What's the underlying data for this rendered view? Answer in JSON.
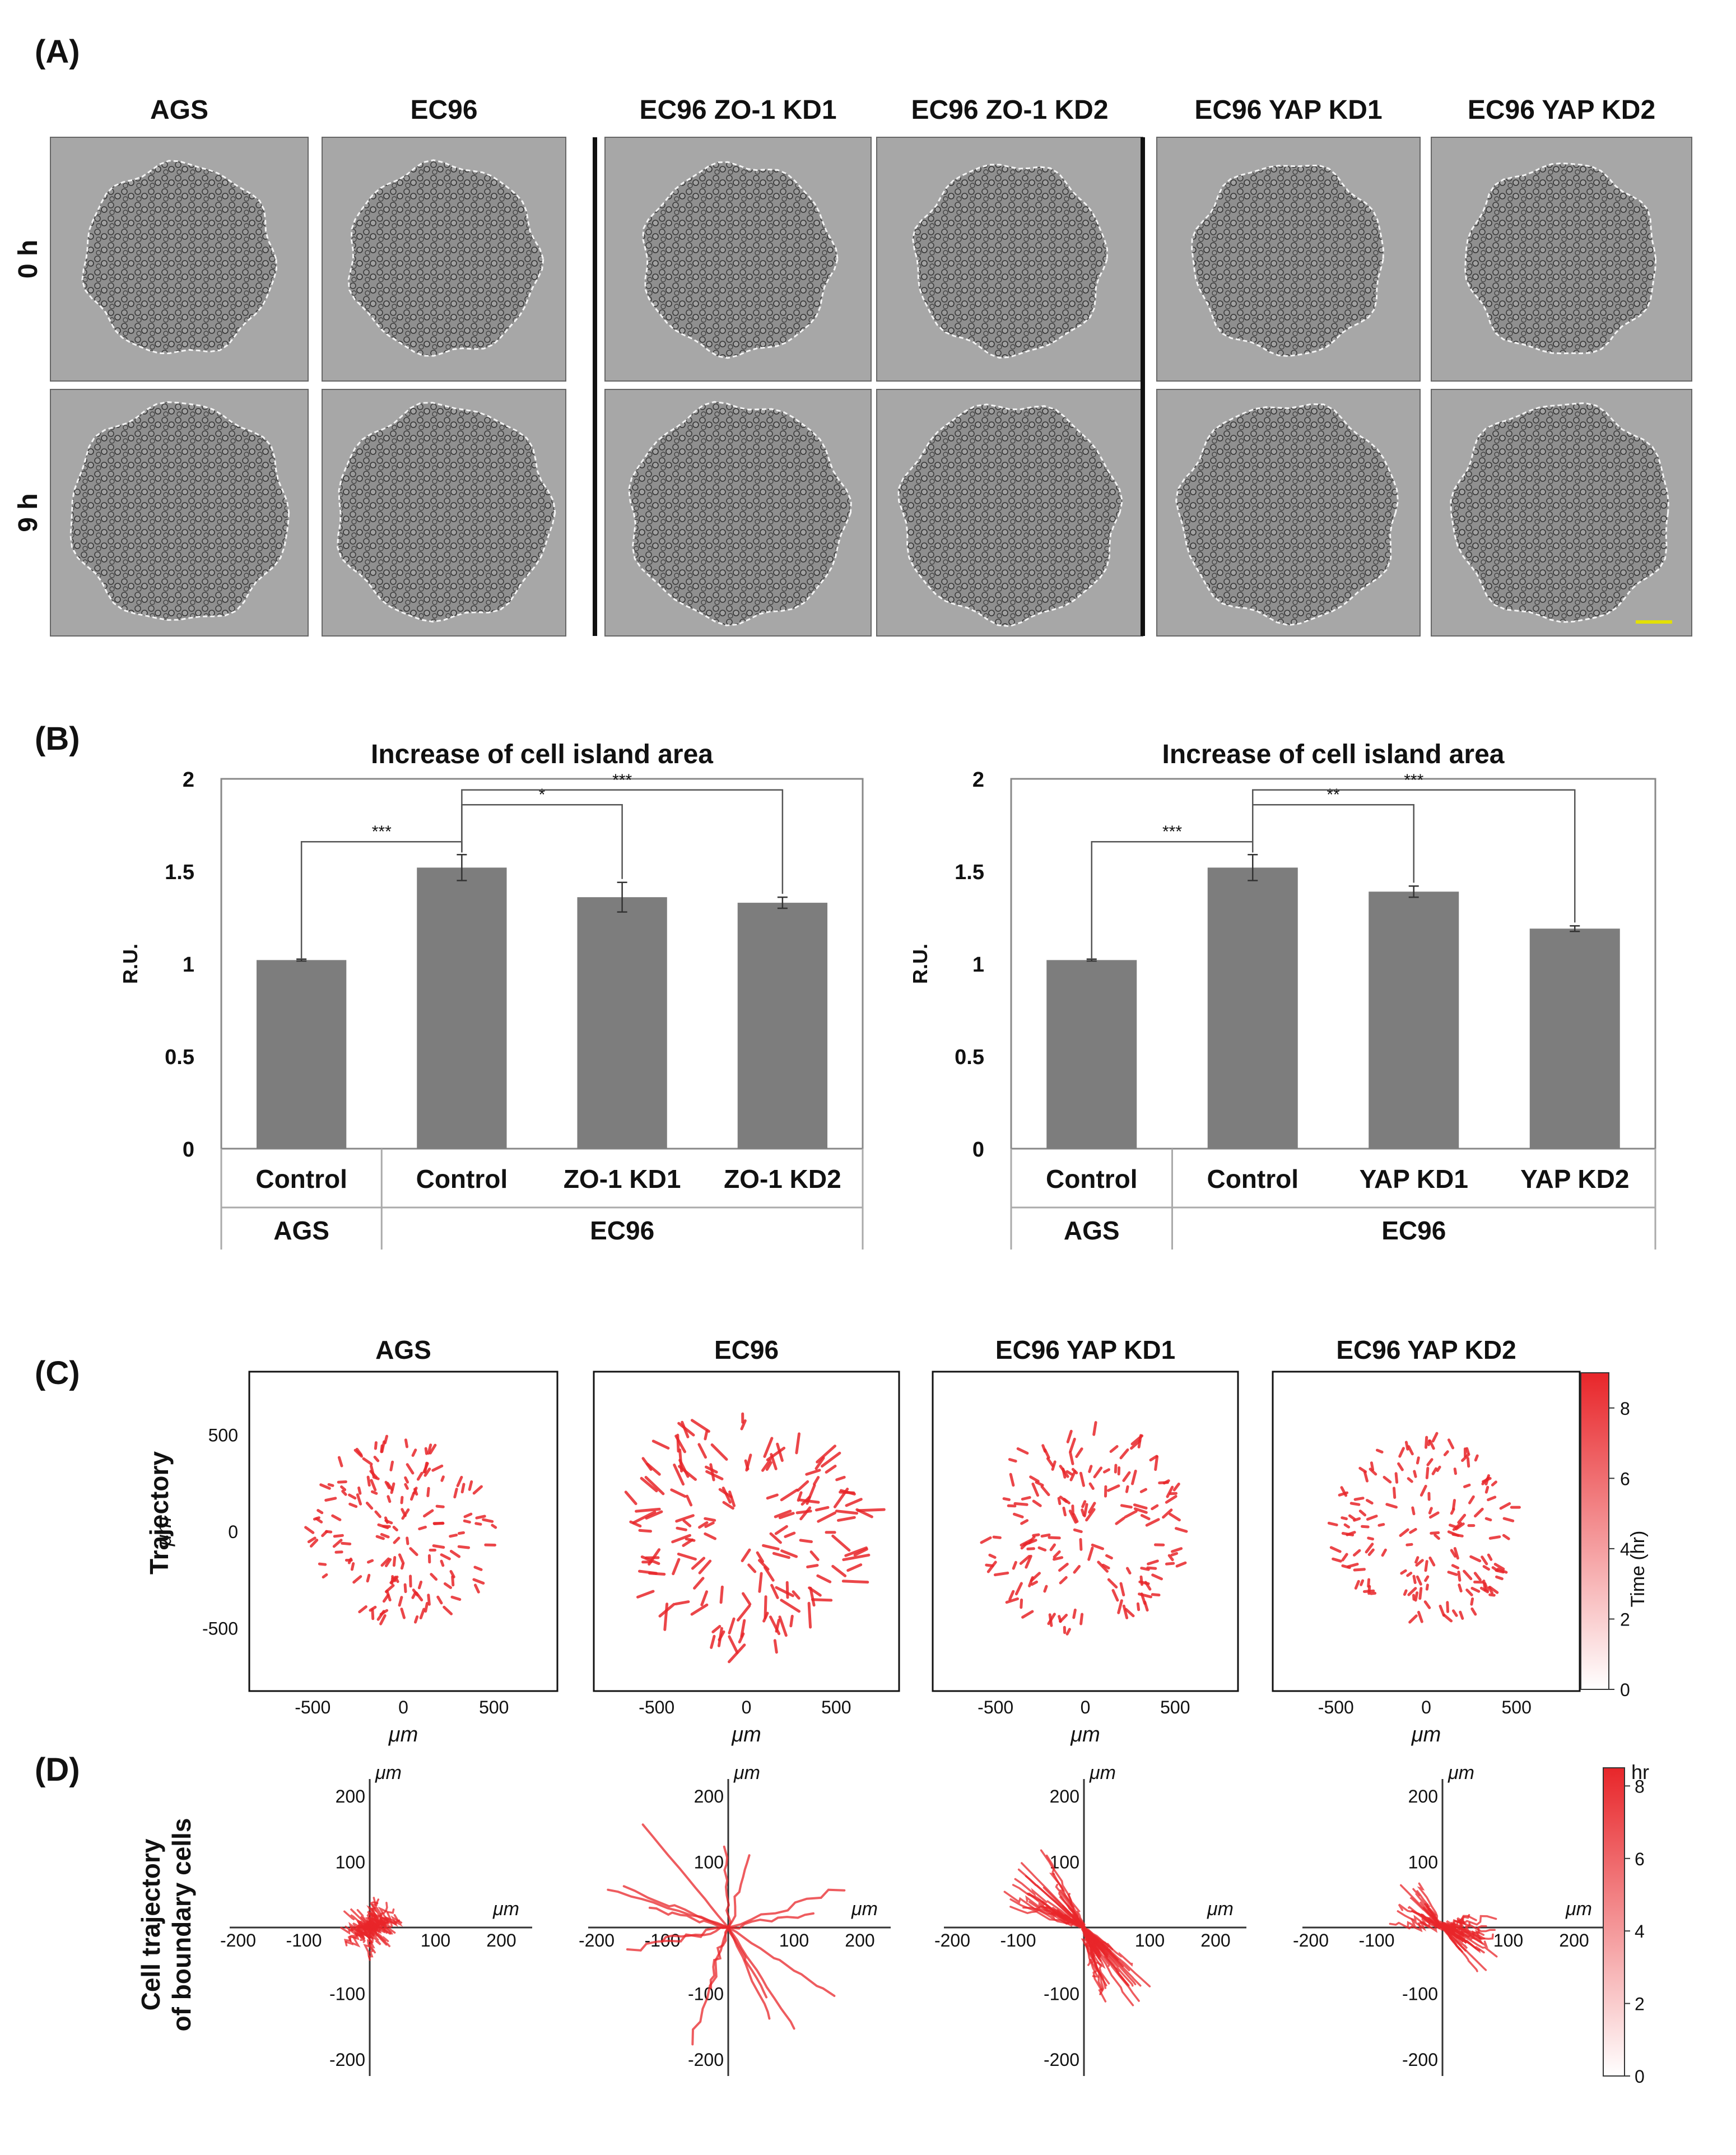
{
  "panel_a": {
    "label": "(A)",
    "columns": [
      "AGS",
      "EC96",
      "EC96 ZO-1 KD1",
      "EC96 ZO-1 KD2",
      "EC96 YAP KD1",
      "EC96 YAP KD2"
    ],
    "rows": [
      "0 h",
      "9 h"
    ]
  },
  "panel_b": {
    "label": "(B)",
    "charts": [
      {
        "title": "Increase of cell island area",
        "ylabel": "R.U.",
        "yticks": [
          "0",
          "0.5",
          "1",
          "1.5",
          "2"
        ],
        "categories": [
          "Control",
          "Control",
          "ZO-1 KD1",
          "ZO-1 KD2"
        ],
        "groups": [
          "AGS",
          "EC96"
        ],
        "significance": [
          "***",
          "*",
          "***"
        ]
      },
      {
        "title": "Increase of cell island area",
        "ylabel": "R.U.",
        "yticks": [
          "0",
          "0.5",
          "1",
          "1.5",
          "2"
        ],
        "categories": [
          "Control",
          "Control",
          "YAP KD1",
          "YAP KD2"
        ],
        "groups": [
          "AGS",
          "EC96"
        ],
        "significance": [
          "***",
          "**",
          "***"
        ]
      }
    ]
  },
  "panel_c": {
    "label": "(C)",
    "row_label": "Trajectory",
    "titles": [
      "AGS",
      "EC96",
      "EC96 YAP KD1",
      "EC96 YAP KD2"
    ],
    "axis_label": "μm",
    "ticks": [
      "-500",
      "0",
      "500"
    ],
    "colorbar_label": "Time (hr)",
    "colorbar_ticks": [
      "0",
      "2",
      "4",
      "6",
      "8"
    ]
  },
  "panel_d": {
    "label": "(D)",
    "row_label_line1": "Cell trajectory",
    "row_label_line2": "of boundary cells",
    "axis_label": "μm",
    "ticks": [
      "-200",
      "-100",
      "100",
      "200"
    ],
    "colorbar_label": "hr",
    "colorbar_ticks": [
      "0",
      "2",
      "4",
      "6",
      "8"
    ]
  },
  "colors": {
    "bar": "#7d7d7d",
    "trajectory": "#e8262a",
    "micrograph_bg": "#a7a7a7",
    "island": "#8c8c8c"
  },
  "chart_data": [
    {
      "type": "bar",
      "title": "Increase of cell island area",
      "xlabel": "",
      "ylabel": "R.U.",
      "ylim": [
        0,
        2
      ],
      "categories": [
        "AGS Control",
        "EC96 Control",
        "EC96 ZO-1 KD1",
        "EC96 ZO-1 KD2"
      ],
      "values": [
        1.02,
        1.52,
        1.36,
        1.33
      ],
      "errors": [
        0.005,
        0.07,
        0.08,
        0.03
      ],
      "significance": [
        {
          "pair": [
            "AGS Control",
            "EC96 Control"
          ],
          "label": "***"
        },
        {
          "pair": [
            "EC96 Control",
            "EC96 ZO-1 KD1"
          ],
          "label": "*"
        },
        {
          "pair": [
            "EC96 Control",
            "EC96 ZO-1 KD2"
          ],
          "label": "***"
        }
      ]
    },
    {
      "type": "bar",
      "title": "Increase of cell island area",
      "xlabel": "",
      "ylabel": "R.U.",
      "ylim": [
        0,
        2
      ],
      "categories": [
        "AGS Control",
        "EC96 Control",
        "EC96 YAP KD1",
        "EC96 YAP KD2"
      ],
      "values": [
        1.02,
        1.52,
        1.39,
        1.19
      ],
      "errors": [
        0.005,
        0.07,
        0.03,
        0.015
      ],
      "significance": [
        {
          "pair": [
            "AGS Control",
            "EC96 Control"
          ],
          "label": "***"
        },
        {
          "pair": [
            "EC96 Control",
            "EC96 YAP KD1"
          ],
          "label": "**"
        },
        {
          "pair": [
            "EC96 Control",
            "EC96 YAP KD2"
          ],
          "label": "***"
        }
      ]
    }
  ]
}
